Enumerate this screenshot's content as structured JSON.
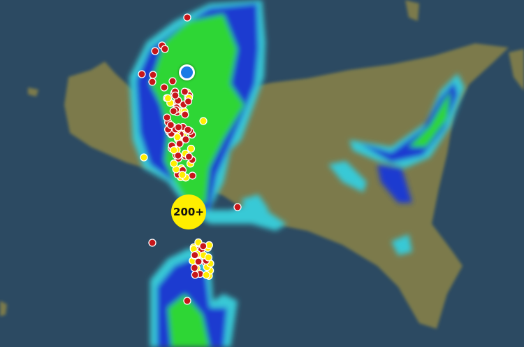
{
  "map": {
    "cluster_label": "200+",
    "colors": {
      "sea": "#2c4a62",
      "land": "#7b7a4c",
      "radar_light": "#39c9d6",
      "radar_medium": "#1f3ad0",
      "radar_heavy": "#2fd635",
      "strike_recent": "#c8161a",
      "strike_new": "#ffee00",
      "location": "#1a7ae6"
    },
    "layers": [
      "radar",
      "lightning-strikes",
      "user-location"
    ]
  }
}
